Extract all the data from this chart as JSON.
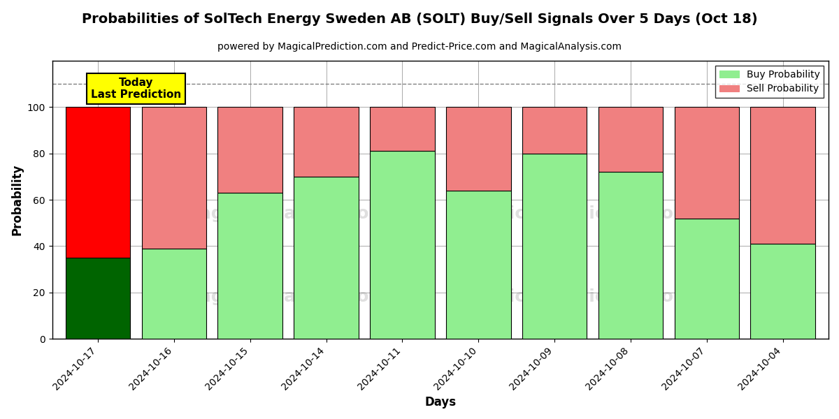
{
  "title": "Probabilities of SolTech Energy Sweden AB (SOLT) Buy/Sell Signals Over 5 Days (Oct 18)",
  "subtitle": "powered by MagicalPrediction.com and Predict-Price.com and MagicalAnalysis.com",
  "xlabel": "Days",
  "ylabel": "Probability",
  "days": [
    "2024-10-17",
    "2024-10-16",
    "2024-10-15",
    "2024-10-14",
    "2024-10-11",
    "2024-10-10",
    "2024-10-09",
    "2024-10-08",
    "2024-10-07",
    "2024-10-04"
  ],
  "buy_values": [
    35,
    39,
    63,
    70,
    81,
    64,
    80,
    72,
    52,
    41
  ],
  "sell_values": [
    65,
    61,
    37,
    30,
    19,
    36,
    20,
    28,
    48,
    59
  ],
  "today_bar_buy_color": "#006400",
  "today_bar_sell_color": "#ff0000",
  "normal_bar_buy_color": "#90EE90",
  "normal_bar_sell_color": "#F08080",
  "today_annotation_text": "Today\nLast Prediction",
  "today_annotation_bg": "#ffff00",
  "ylim": [
    0,
    120
  ],
  "yticks": [
    0,
    20,
    40,
    60,
    80,
    100
  ],
  "dashed_line_y": 110,
  "legend_buy_label": "Buy Probability",
  "legend_sell_label": "Sell Probability",
  "legend_buy_color": "#90EE90",
  "legend_sell_color": "#F08080",
  "bar_width": 0.85,
  "bar_edgecolor": "#000000",
  "grid_color": "#aaaaaa",
  "title_fontsize": 14,
  "subtitle_fontsize": 10,
  "axis_label_fontsize": 12,
  "tick_fontsize": 10
}
